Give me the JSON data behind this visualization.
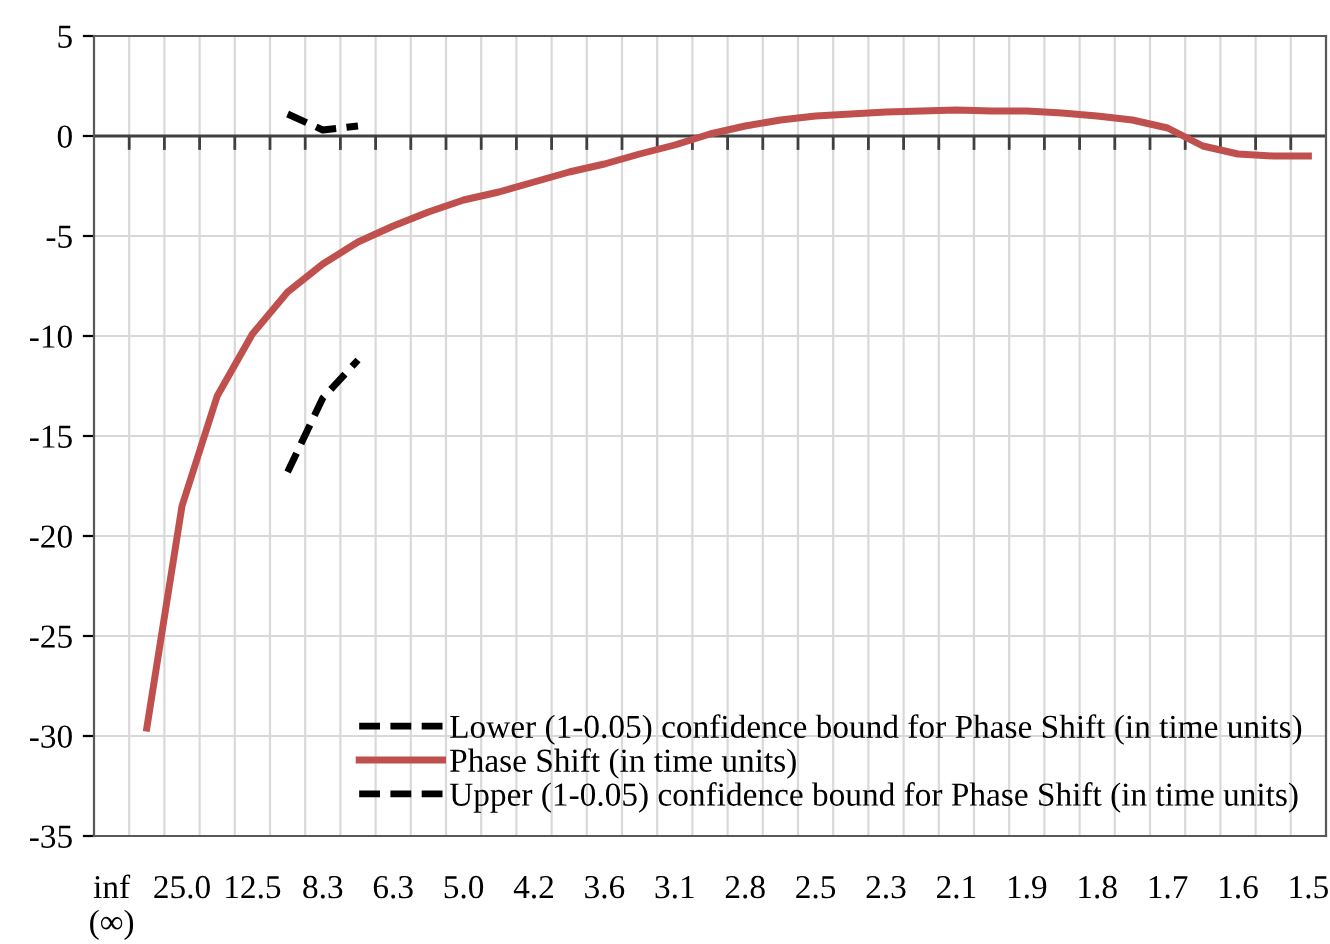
{
  "chart_data": {
    "type": "line",
    "categories": [
      "inf\n(∞)",
      null,
      "25.0",
      null,
      "12.5",
      null,
      "8.3",
      null,
      "6.3",
      null,
      "5.0",
      null,
      "4.2",
      null,
      "3.6",
      null,
      "3.1",
      null,
      "2.8",
      null,
      "2.5",
      null,
      "2.3",
      null,
      "2.1",
      null,
      "1.9",
      null,
      "1.8",
      null,
      "1.7",
      null,
      "1.6",
      null,
      "1.5"
    ],
    "series": [
      {
        "name": "Lower (1-0.05) confidence bound for Phase Shift (in time units)",
        "color": "#000000",
        "line_style": "dashed",
        "values": [
          null,
          null,
          null,
          null,
          null,
          -16.8,
          -13.1,
          -11.2,
          null,
          null,
          null,
          null,
          null,
          null,
          null,
          null,
          null,
          null,
          null,
          null,
          null,
          null,
          null,
          null,
          null,
          null,
          null,
          null,
          null,
          null,
          null,
          null,
          null,
          null,
          null
        ]
      },
      {
        "name": "Phase Shift (in time units)",
        "color": "#c0504d",
        "line_style": "solid",
        "values": [
          null,
          -29.6,
          -18.5,
          -13,
          -9.9,
          -7.8,
          -6.4,
          -5.3,
          -4.5,
          -3.8,
          -3.2,
          -2.8,
          -2.3,
          -1.8,
          -1.4,
          -0.9,
          -0.45,
          0.1,
          0.5,
          0.8,
          1.0,
          1.1,
          1.2,
          1.25,
          1.3,
          1.25,
          1.25,
          1.15,
          1.0,
          0.8,
          0.4,
          -0.5,
          -0.9,
          -1.0,
          -1.0
        ]
      },
      {
        "name": "Upper (1-0.05) confidence bound for Phase Shift (in time units)",
        "color": "#000000",
        "line_style": "dashed",
        "values": [
          null,
          null,
          null,
          null,
          null,
          1.1,
          0.3,
          0.5,
          null,
          null,
          null,
          null,
          null,
          null,
          null,
          null,
          null,
          null,
          null,
          null,
          null,
          null,
          null,
          null,
          null,
          null,
          null,
          null,
          null,
          null,
          null,
          null,
          null,
          null,
          null
        ]
      }
    ],
    "ylim": [
      -35,
      5
    ],
    "yticks": [
      -35,
      -30,
      -25,
      -20,
      -15,
      -10,
      -5,
      0,
      5
    ],
    "ref_lines": [
      {
        "axis": "y",
        "value": 0,
        "color": "#404040",
        "line_style": "solid"
      }
    ],
    "grid": true,
    "legend": "bottom right",
    "marker": "none"
  }
}
